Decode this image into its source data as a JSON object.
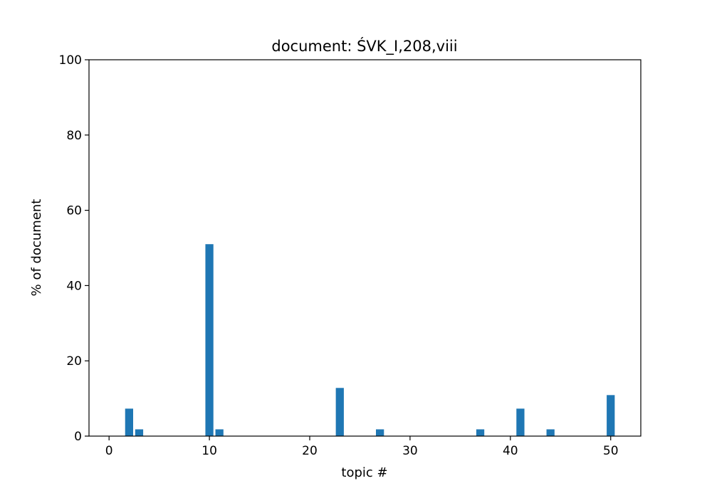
{
  "chart_data": {
    "type": "bar",
    "title": "document: ŚVK_I,208,viii",
    "xlabel": "topic #",
    "ylabel": "% of document",
    "xlim": [
      -2,
      53
    ],
    "ylim": [
      0,
      100
    ],
    "xticks": [
      0,
      10,
      20,
      30,
      40,
      50
    ],
    "yticks": [
      0,
      20,
      40,
      60,
      80,
      100
    ],
    "bar_color": "#1f77b4",
    "grid": false,
    "x": [
      2,
      3,
      10,
      11,
      23,
      27,
      37,
      41,
      44,
      50
    ],
    "values": [
      7.3,
      1.8,
      51.0,
      1.8,
      12.8,
      1.8,
      1.8,
      7.3,
      1.8,
      10.9
    ]
  }
}
